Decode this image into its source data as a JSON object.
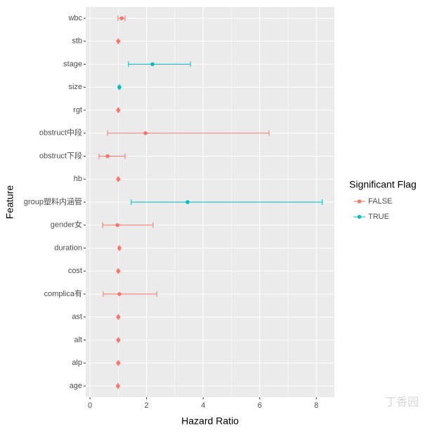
{
  "chart_data": {
    "type": "forest",
    "x_label": "Hazard Ratio",
    "y_label": "Feature",
    "categories": [
      "wbc",
      "stb",
      "stage",
      "size",
      "rgt",
      "obstruct中段",
      "obstruct下段",
      "hb",
      "group塑料内涵管",
      "gender女",
      "duration",
      "cost",
      "complica有",
      "ast",
      "alt",
      "alp",
      "age"
    ],
    "legend_title": "Significant Flag",
    "series": [
      {
        "name": "FALSE",
        "color": "#F8766D",
        "values": [
          1.12,
          1.0,
          null,
          null,
          1.0,
          1.96,
          0.62,
          1.0,
          null,
          0.97,
          1.04,
          1.0,
          1.04,
          1.0,
          1.0,
          1.0,
          0.99
        ],
        "lower": [
          0.99,
          0.99,
          null,
          null,
          0.99,
          0.62,
          0.32,
          0.99,
          null,
          0.45,
          1.02,
          0.99,
          0.47,
          0.99,
          0.99,
          0.99,
          0.98
        ],
        "upper": [
          1.24,
          1.01,
          null,
          null,
          1.01,
          6.33,
          1.24,
          1.01,
          null,
          2.23,
          1.06,
          1.01,
          2.36,
          1.01,
          1.01,
          1.01,
          1.0
        ]
      },
      {
        "name": "TRUE",
        "color": "#00BFC4",
        "values": [
          null,
          null,
          2.21,
          1.04,
          null,
          null,
          null,
          null,
          3.45,
          null,
          null,
          null,
          null,
          null,
          null,
          null,
          null
        ],
        "lower": [
          null,
          null,
          1.36,
          1.02,
          null,
          null,
          null,
          null,
          1.46,
          null,
          null,
          null,
          null,
          null,
          null,
          null,
          null
        ],
        "upper": [
          null,
          null,
          3.55,
          1.06,
          null,
          null,
          null,
          null,
          8.21,
          null,
          null,
          null,
          null,
          null,
          null,
          null,
          null
        ]
      }
    ],
    "xlim": [
      -0.15,
      8.64
    ],
    "xticks": [
      0,
      2,
      4,
      6,
      8
    ],
    "grid": true,
    "watermark": "丁香园"
  }
}
